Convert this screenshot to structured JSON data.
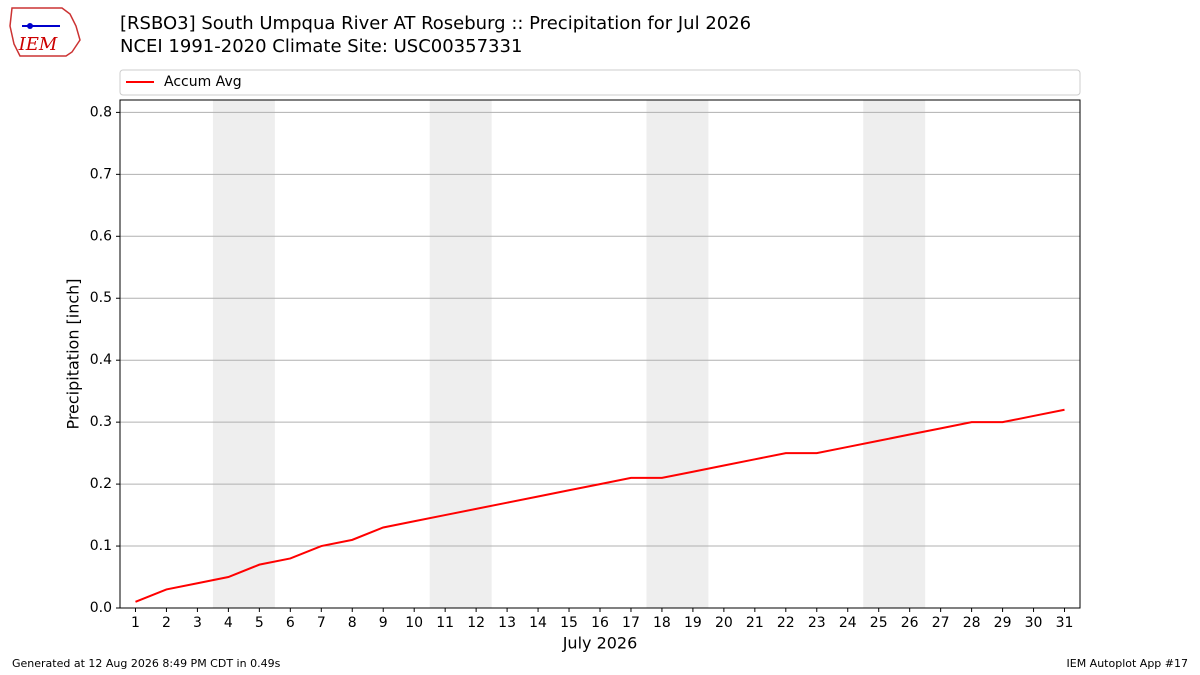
{
  "logo": "IEM",
  "chart_data": {
    "type": "line",
    "title": "[RSBO3] South Umpqua River  AT Roseburg :: Precipitation for Jul 2026",
    "subtitle": "NCEI 1991-2020 Climate Site: USC00357331",
    "xlabel": "July 2026",
    "ylabel": "Precipitation [inch]",
    "x": [
      1,
      2,
      3,
      4,
      5,
      6,
      7,
      8,
      9,
      10,
      11,
      12,
      13,
      14,
      15,
      16,
      17,
      18,
      19,
      20,
      21,
      22,
      23,
      24,
      25,
      26,
      27,
      28,
      29,
      30,
      31
    ],
    "series": [
      {
        "name": "Accum Avg",
        "color": "#ff0000",
        "values": [
          0.01,
          0.03,
          0.04,
          0.05,
          0.07,
          0.08,
          0.1,
          0.11,
          0.13,
          0.14,
          0.15,
          0.16,
          0.17,
          0.18,
          0.19,
          0.2,
          0.21,
          0.21,
          0.22,
          0.23,
          0.24,
          0.25,
          0.25,
          0.26,
          0.27,
          0.28,
          0.29,
          0.3,
          0.3,
          0.31,
          0.32
        ]
      }
    ],
    "xlim": [
      0.5,
      31.5
    ],
    "ylim": [
      0,
      0.82
    ],
    "xticks": [
      1,
      2,
      3,
      4,
      5,
      6,
      7,
      8,
      9,
      10,
      11,
      12,
      13,
      14,
      15,
      16,
      17,
      18,
      19,
      20,
      21,
      22,
      23,
      24,
      25,
      26,
      27,
      28,
      29,
      30,
      31
    ],
    "yticks": [
      {
        "value": 0,
        "label": "0.0"
      },
      0.1,
      0.2,
      0.3,
      0.4,
      0.5,
      0.6,
      0.7,
      0.8
    ],
    "weekend_spans": [
      [
        3.5,
        5.5
      ],
      [
        10.5,
        12.5
      ],
      [
        17.5,
        19.5
      ],
      [
        24.5,
        26.5
      ]
    ],
    "weekend_color": "#eeeeee",
    "grid": true,
    "legend": "top"
  },
  "footer": {
    "left": "Generated at 12 Aug 2026 8:49 PM CDT in 0.49s",
    "right": "IEM Autoplot App #17"
  }
}
